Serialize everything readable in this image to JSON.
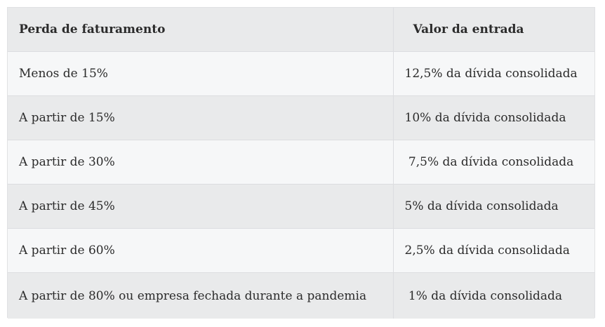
{
  "table": {
    "headers": [
      "Perda de faturamento",
      "Valor da entrada"
    ],
    "rows": [
      [
        "Menos de 15%",
        "12,5% da dívida consolidada"
      ],
      [
        "A partir de 15%",
        "10% da dívida consolidada"
      ],
      [
        "A partir de 30%",
        " 7,5% da dívida consolidada"
      ],
      [
        "A partir de 45%",
        "5% da dívida consolidada"
      ],
      [
        "A partir de 60%",
        "2,5% da dívida consolidada"
      ],
      [
        "A partir de 80% ou empresa fechada durante a pandemia",
        " 1% da dívida consolidada"
      ]
    ]
  }
}
